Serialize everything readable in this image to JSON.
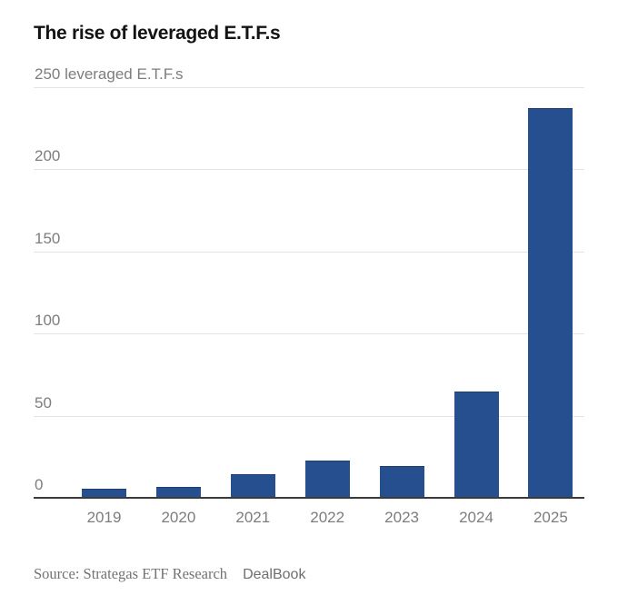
{
  "chart_data": {
    "type": "bar",
    "title": "The rise of leveraged E.T.F.s",
    "unit_label": "250 leveraged E.T.F.s",
    "ylabel": "leveraged E.T.F.s",
    "categories": [
      "2019",
      "2020",
      "2021",
      "2022",
      "2023",
      "2024",
      "2025"
    ],
    "values": [
      5,
      6,
      14,
      22,
      19,
      64,
      237
    ],
    "yticks": [
      0,
      50,
      100,
      150,
      200,
      250
    ],
    "ylim": [
      0,
      250
    ],
    "grid": true,
    "legend": false,
    "bar_color": "#254F8F"
  },
  "footer": {
    "source": "Source: Strategas ETF Research",
    "byline": "DealBook"
  },
  "colors": {
    "bar": "#254F8F",
    "bar_edge": "#1D3E6F",
    "axis_line": "#3A3A3A",
    "gridline": "#E3E3E3",
    "tick_label": "#7D7D7D",
    "title": "#131313",
    "source_text": "#737373"
  }
}
